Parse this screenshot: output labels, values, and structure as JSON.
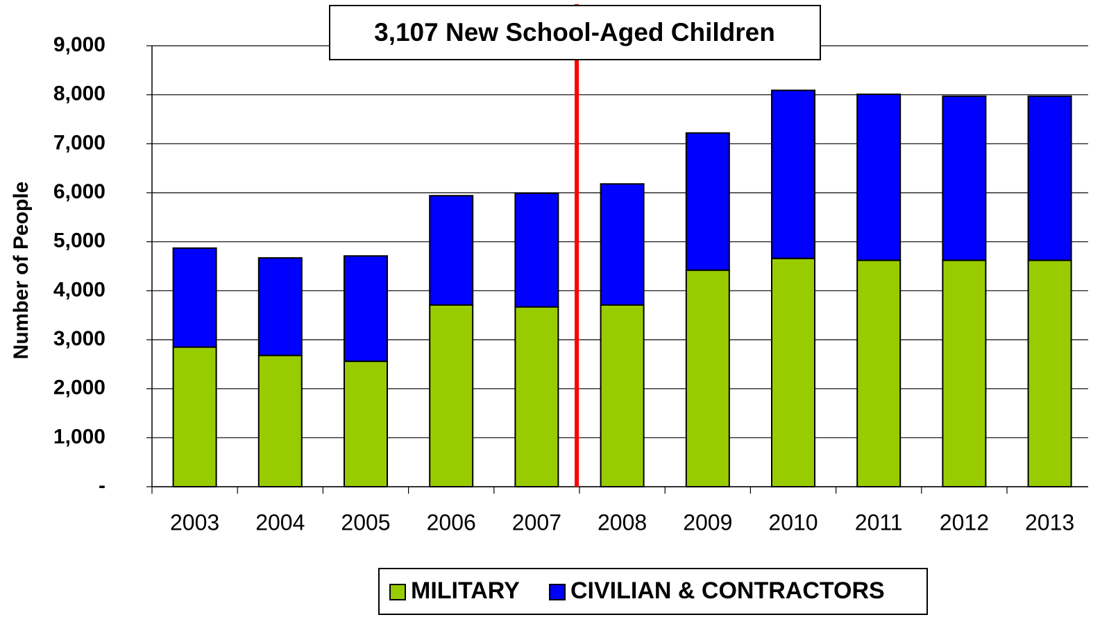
{
  "chart_data": {
    "type": "stacked_bar",
    "annotation": "3,107 New School-Aged Children",
    "y_axis_label": "Number of People",
    "categories": [
      "2003",
      "2004",
      "2005",
      "2006",
      "2007",
      "2008",
      "2009",
      "2010",
      "2011",
      "2012",
      "2013"
    ],
    "series": [
      {
        "name": "MILITARY",
        "color": "#99cc00",
        "values": [
          2850,
          2680,
          2560,
          3710,
          3670,
          3710,
          4420,
          4660,
          4620,
          4620,
          4620
        ]
      },
      {
        "name": "CIVILIAN & CONTRACTORS",
        "color": "#0000ff",
        "values": [
          2020,
          1990,
          2150,
          2230,
          2320,
          2470,
          2800,
          3430,
          3390,
          3350,
          3350
        ]
      }
    ],
    "ylim": [
      0,
      9000
    ],
    "yticks": [
      {
        "value": 0,
        "label": "-"
      },
      {
        "value": 1000,
        "label": "1,000"
      },
      {
        "value": 2000,
        "label": "2,000"
      },
      {
        "value": 3000,
        "label": "3,000"
      },
      {
        "value": 4000,
        "label": "4,000"
      },
      {
        "value": 5000,
        "label": "5,000"
      },
      {
        "value": 6000,
        "label": "6,000"
      },
      {
        "value": 7000,
        "label": "7,000"
      },
      {
        "value": 8000,
        "label": "8,000"
      },
      {
        "value": 9000,
        "label": "9,000"
      }
    ],
    "grid": true,
    "legend": "bottom"
  }
}
